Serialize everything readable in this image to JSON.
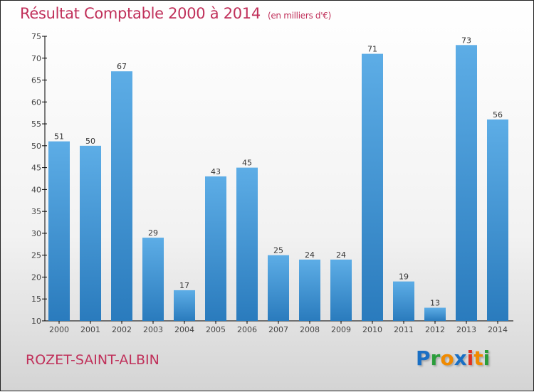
{
  "chart_data": {
    "type": "bar",
    "title": "Résultat Comptable 2000 à 2014",
    "subtitle": "(en milliers d'€)",
    "categories": [
      "2000",
      "2001",
      "2002",
      "2003",
      "2004",
      "2005",
      "2006",
      "2007",
      "2008",
      "2009",
      "2010",
      "2011",
      "2012",
      "2013",
      "2014"
    ],
    "values": [
      51,
      50,
      67,
      29,
      17,
      43,
      45,
      25,
      24,
      24,
      71,
      19,
      13,
      73,
      56
    ],
    "ylim": [
      10,
      75
    ],
    "yticks": [
      10,
      15,
      20,
      25,
      30,
      35,
      40,
      45,
      50,
      55,
      60,
      65,
      70,
      75
    ],
    "xlabel": "",
    "ylabel": "",
    "bar_color_top": "#5dade6",
    "bar_color_bottom": "#2a7bbd"
  },
  "place": "ROZET-SAINT-ALBIN",
  "logo": {
    "letters": [
      "P",
      "r",
      "o",
      "x",
      "i",
      "t",
      "i"
    ],
    "colors": [
      "#1a6fc4",
      "#2a9d3a",
      "#f08a00",
      "#1a6fc4",
      "#e03020",
      "#f08a00",
      "#2a9d3a"
    ]
  }
}
